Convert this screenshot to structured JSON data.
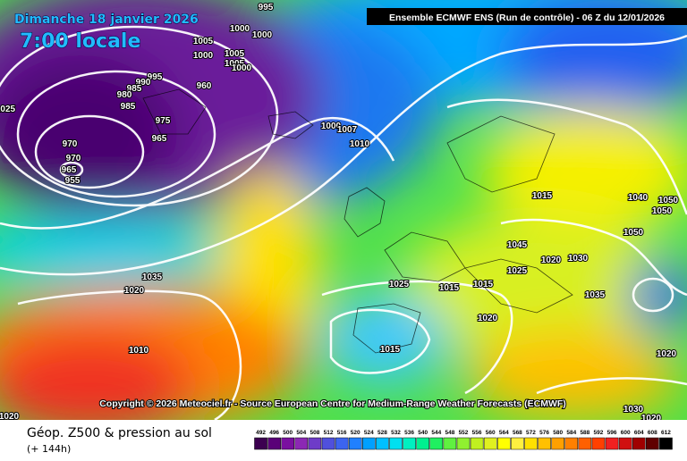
{
  "date": "Dimanche 18 janvier 2026",
  "time": "7:00 locale",
  "header": "Ensemble ECMWF ENS  (Run de contrôle)  - 06 Z du 12/01/2026",
  "copyright": "Copyright © 2026 Meteociel.fr - Source European Centre for Medium-Range Weather Forecasts (ECMWF)",
  "footer": {
    "title": "Géop. Z500 & pression au sol",
    "subtitle": "(+ 144h)"
  },
  "isobar_labels": [
    995,
    1000,
    1000,
    1005,
    1000,
    1005,
    1005,
    1000,
    995,
    990,
    985,
    980,
    975,
    965,
    970,
    970,
    965,
    955,
    960,
    1000,
    1007,
    1010,
    1015,
    1040,
    1050,
    1050,
    1050,
    1045,
    1025,
    1020,
    1030,
    1035,
    1035,
    1020,
    1025,
    1015,
    1015,
    1020,
    1015,
    1010,
    1030,
    1020,
    1020,
    1020,
    1025,
    985
  ],
  "scale": {
    "values": [
      492,
      496,
      500,
      504,
      508,
      512,
      516,
      520,
      524,
      528,
      532,
      536,
      540,
      544,
      548,
      552,
      556,
      560,
      564,
      568,
      572,
      576,
      580,
      584,
      588,
      592,
      596,
      600,
      604,
      608,
      612
    ],
    "colors": [
      "#3c0050",
      "#5a0078",
      "#7a10a0",
      "#8c28b4",
      "#6e3cc8",
      "#5050dc",
      "#3c64f0",
      "#2080ff",
      "#00a0ff",
      "#00c0ff",
      "#00e0f0",
      "#00f0c0",
      "#00f090",
      "#20f060",
      "#60f040",
      "#90f030",
      "#c0f020",
      "#e0f020",
      "#ffff00",
      "#fff040",
      "#ffe000",
      "#ffc000",
      "#ffa000",
      "#ff8000",
      "#ff6000",
      "#ff4000",
      "#f02020",
      "#d01010",
      "#a00000",
      "#600000",
      "#000000"
    ]
  }
}
